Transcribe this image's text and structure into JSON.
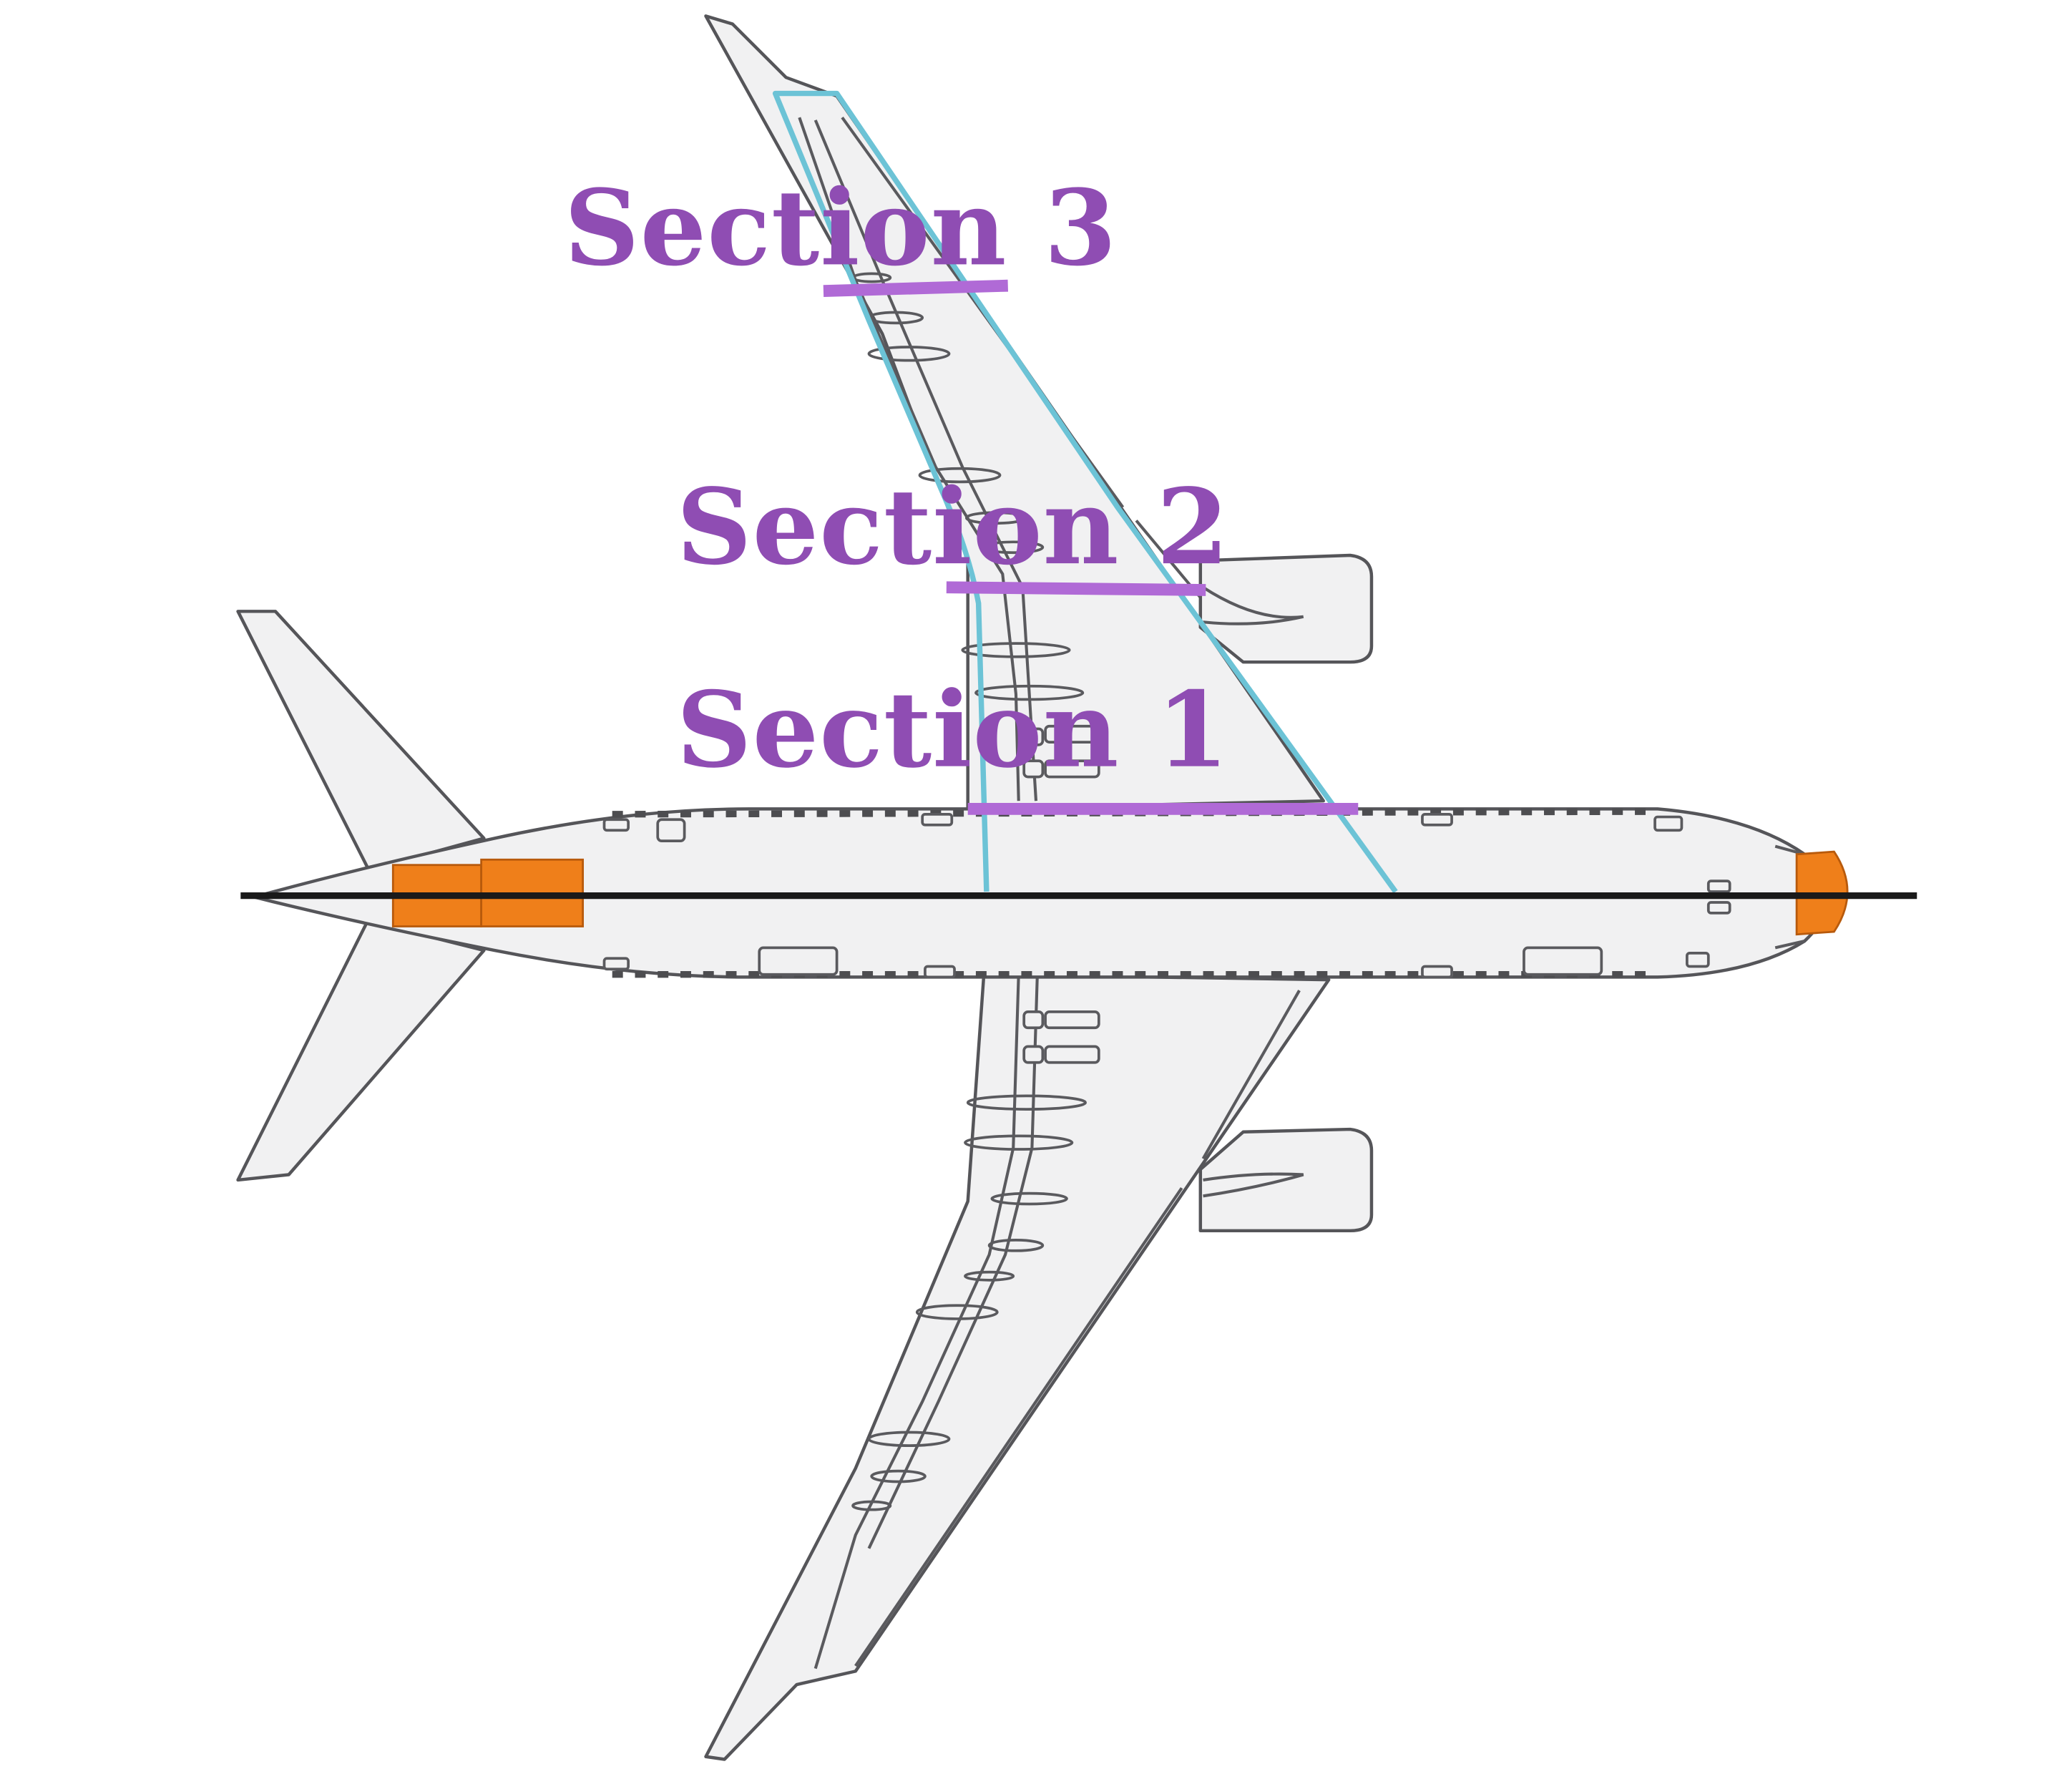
{
  "sections": [
    {
      "id": "section-1",
      "label": "Section 1"
    },
    {
      "id": "section-2",
      "label": "Section 2"
    },
    {
      "id": "section-3",
      "label": "Section 3"
    }
  ],
  "colors": {
    "section_line": "#b06ad6",
    "section_label": "#8f4db3",
    "wing_box_outline": "#6cc3d6",
    "highlight_block": "#ef7f1a",
    "centerline": "#1a1a1a",
    "airframe_fill": "#f1f1f2",
    "airframe_outline": "#555559"
  }
}
